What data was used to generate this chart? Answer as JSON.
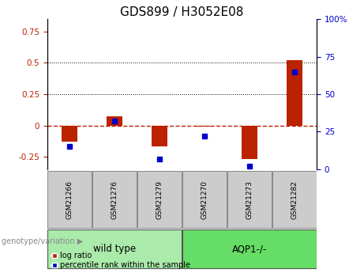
{
  "title": "GDS899 / H3052E08",
  "samples": [
    "GSM21266",
    "GSM21276",
    "GSM21279",
    "GSM21270",
    "GSM21273",
    "GSM21282"
  ],
  "log_ratio": [
    -0.13,
    0.07,
    -0.17,
    -0.01,
    -0.27,
    0.52
  ],
  "percentile_rank_pct": [
    15,
    32,
    7,
    22,
    2,
    65
  ],
  "groups": [
    {
      "label": "wild type",
      "start": 0,
      "end": 3,
      "color": "#aaeaaa"
    },
    {
      "label": "AQP1-/-",
      "start": 3,
      "end": 6,
      "color": "#66dd66"
    }
  ],
  "bar_color": "#bb2200",
  "dot_color": "#0000cc",
  "zero_line_color": "#bb2200",
  "ylim_left": [
    -0.35,
    0.85
  ],
  "ylim_right": [
    0,
    100
  ],
  "yticks_left": [
    -0.25,
    0,
    0.25,
    0.5,
    0.75
  ],
  "yticks_right": [
    0,
    25,
    50,
    75,
    100
  ],
  "hlines": [
    0.25,
    0.5
  ],
  "bar_width": 0.35,
  "title_fontsize": 11,
  "tick_fontsize": 7.5,
  "sample_fontsize": 6.5,
  "group_label_fontsize": 8.5,
  "legend_fontsize": 7,
  "genotype_fontsize": 7
}
